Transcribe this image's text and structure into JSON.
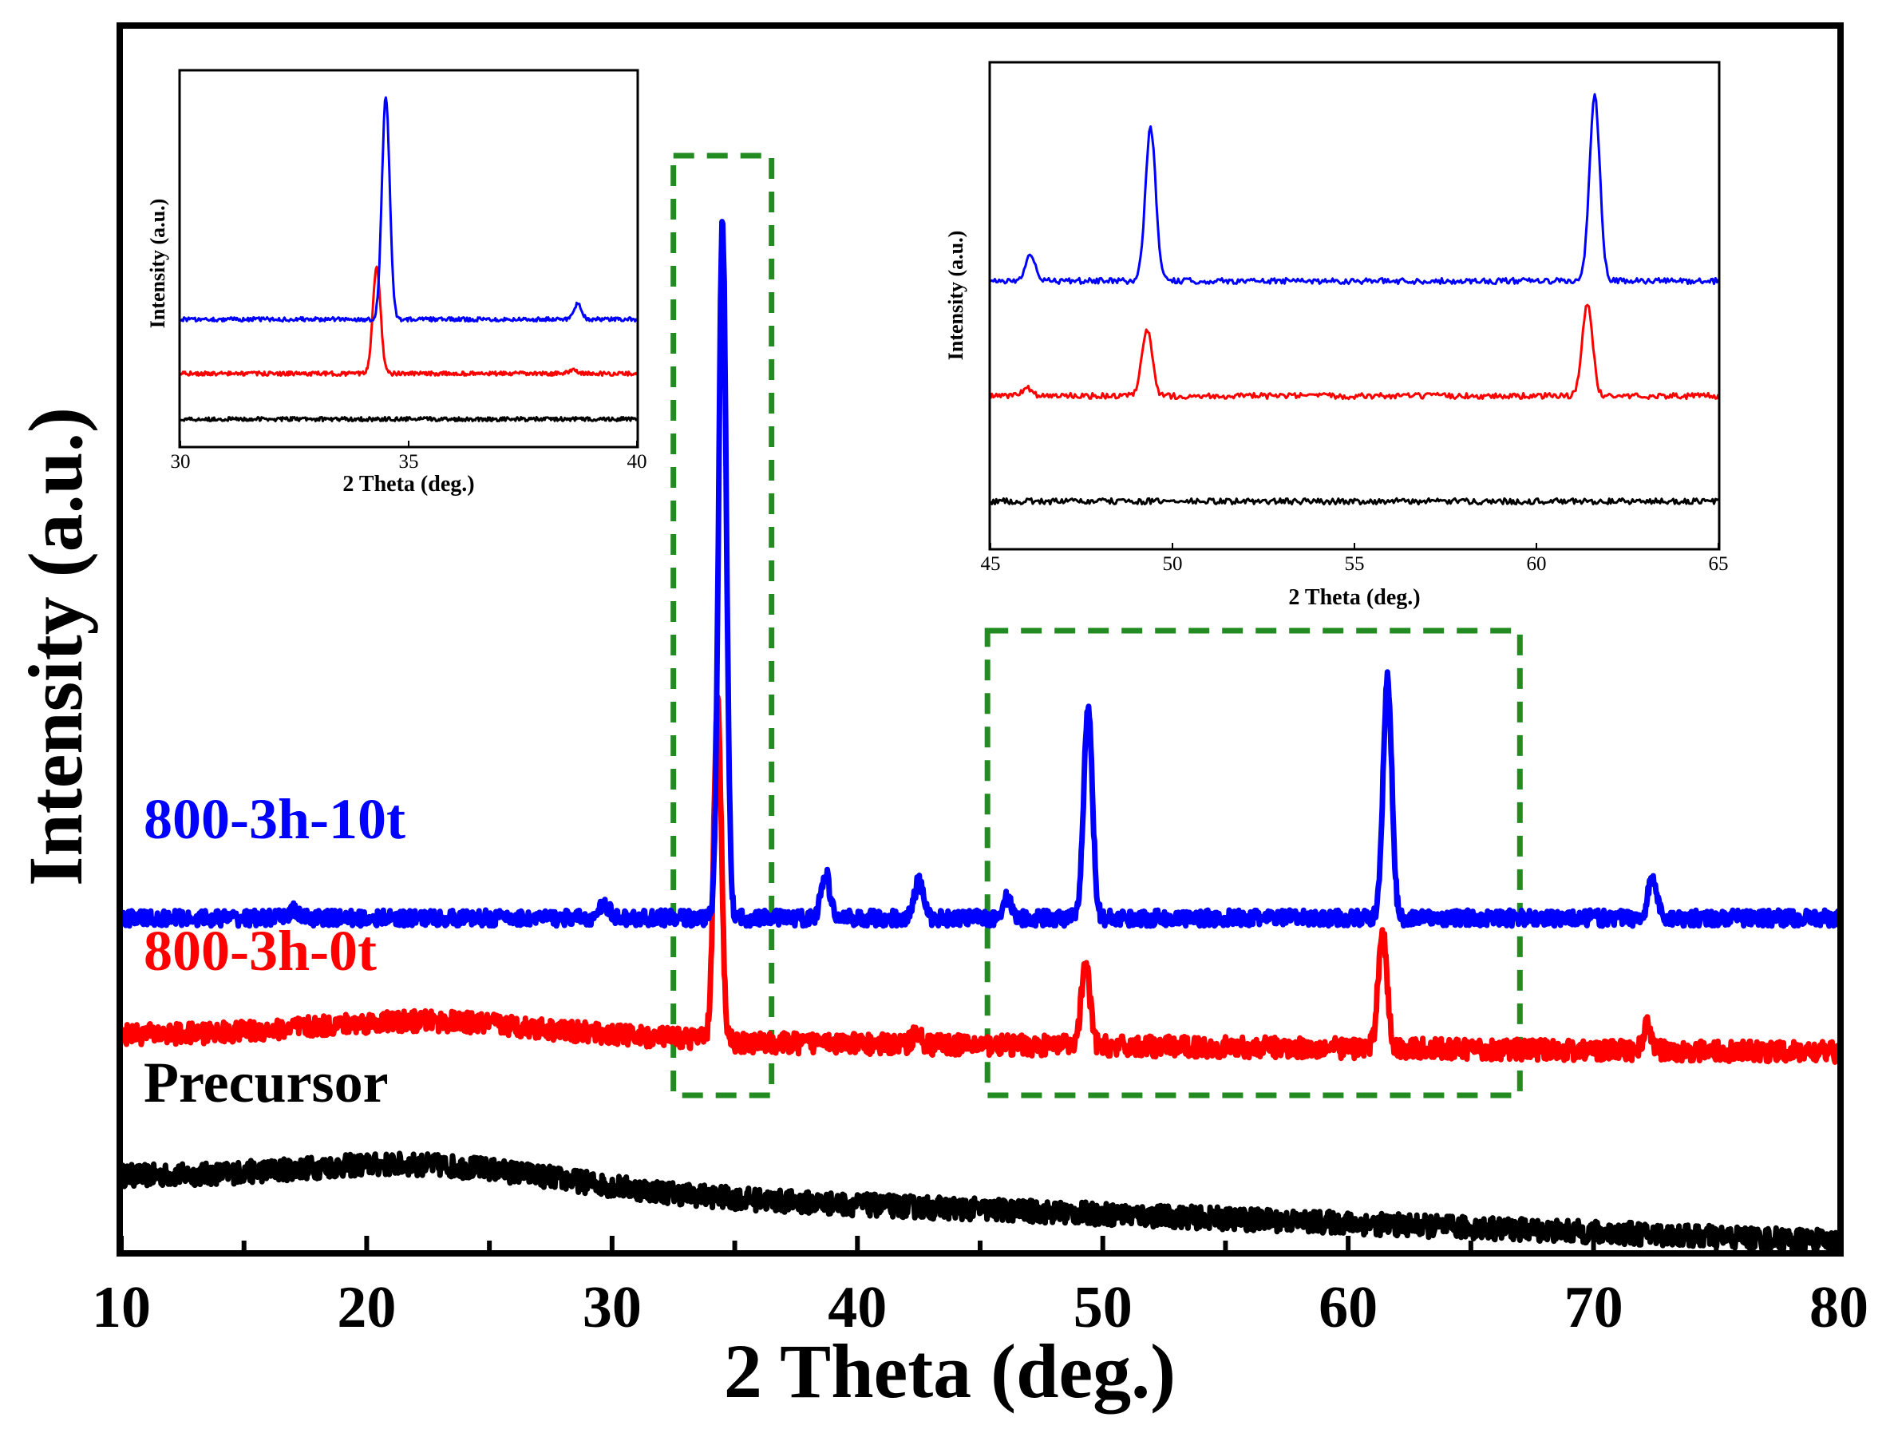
{
  "chart_data": [
    {
      "type": "line",
      "panel": "main",
      "xlabel": "2 Theta (deg.)",
      "ylabel": "Intensity (a.u.)",
      "xlim": [
        10,
        80
      ],
      "x_ticks": [
        "10",
        "20",
        "30",
        "40",
        "50",
        "60",
        "70",
        "80"
      ],
      "y_ticks_shown": false,
      "grid": false,
      "series": [
        {
          "name": "800-3h-10t",
          "color": "#0000ff",
          "baseline": 0.15,
          "peaks": [
            [
              17.0,
              0.01
            ],
            [
              29.7,
              0.018
            ],
            [
              34.5,
              0.87
            ],
            [
              38.7,
              0.055
            ],
            [
              42.5,
              0.045
            ],
            [
              46.1,
              0.025
            ],
            [
              49.4,
              0.26
            ],
            [
              61.6,
              0.3
            ],
            [
              72.4,
              0.05
            ]
          ]
        },
        {
          "name": "800-3h-0t",
          "color": "#ff0000",
          "baseline": 0.0,
          "peaks": [
            [
              34.3,
              0.42
            ],
            [
              38.6,
              0.01
            ],
            [
              42.4,
              0.015
            ],
            [
              49.3,
              0.1
            ],
            [
              61.4,
              0.15
            ],
            [
              72.2,
              0.03
            ]
          ]
        },
        {
          "name": "Precursor",
          "color": "#000000",
          "baseline": -0.175,
          "peaks": []
        }
      ],
      "annotations": [
        {
          "shape": "dashed-box",
          "color": "#228b22",
          "x_range": [
            32.5,
            36.5
          ]
        },
        {
          "shape": "dashed-box",
          "color": "#228b22",
          "x_range": [
            45.3,
            67.0
          ]
        }
      ]
    },
    {
      "type": "line",
      "panel": "inset-left",
      "xlabel": "2 Theta (deg.)",
      "ylabel": "Intensity (a.u.)",
      "xlim": [
        30,
        40
      ],
      "x_ticks": [
        "30",
        "35",
        "40"
      ],
      "series": [
        {
          "name": "800-3h-10t",
          "color": "#0000ff",
          "peaks": [
            [
              34.5,
              1.0
            ],
            [
              38.7,
              0.07
            ]
          ]
        },
        {
          "name": "800-3h-0t",
          "color": "#ff0000",
          "peaks": [
            [
              34.3,
              0.48
            ],
            [
              38.6,
              0.02
            ]
          ]
        },
        {
          "name": "Precursor",
          "color": "#000000",
          "peaks": []
        }
      ]
    },
    {
      "type": "line",
      "panel": "inset-right",
      "xlabel": "2 Theta (deg.)",
      "ylabel": "Intensity (a.u.)",
      "xlim": [
        45,
        65
      ],
      "x_ticks": [
        "45",
        "50",
        "55",
        "60",
        "65"
      ],
      "series": [
        {
          "name": "800-3h-10t",
          "color": "#0000ff",
          "peaks": [
            [
              46.1,
              0.1
            ],
            [
              49.4,
              0.58
            ],
            [
              61.6,
              0.7
            ]
          ]
        },
        {
          "name": "800-3h-0t",
          "color": "#ff0000",
          "peaks": [
            [
              46.0,
              0.03
            ],
            [
              49.3,
              0.25
            ],
            [
              61.4,
              0.35
            ]
          ]
        },
        {
          "name": "Precursor",
          "color": "#000000",
          "peaks": []
        }
      ]
    }
  ],
  "labels": {
    "main_xlabel": "2 Theta (deg.)",
    "main_ylabel": "Intensity (a.u.)",
    "series_blue": "800-3h-10t",
    "series_red": "800-3h-0t",
    "series_black": "Precursor",
    "inset_left_xlabel": "2 Theta (deg.)",
    "inset_left_ylabel": "Intensity (a.u.)",
    "inset_right_xlabel": "2 Theta (deg.)",
    "inset_right_ylabel": "Intensity (a.u.)"
  }
}
